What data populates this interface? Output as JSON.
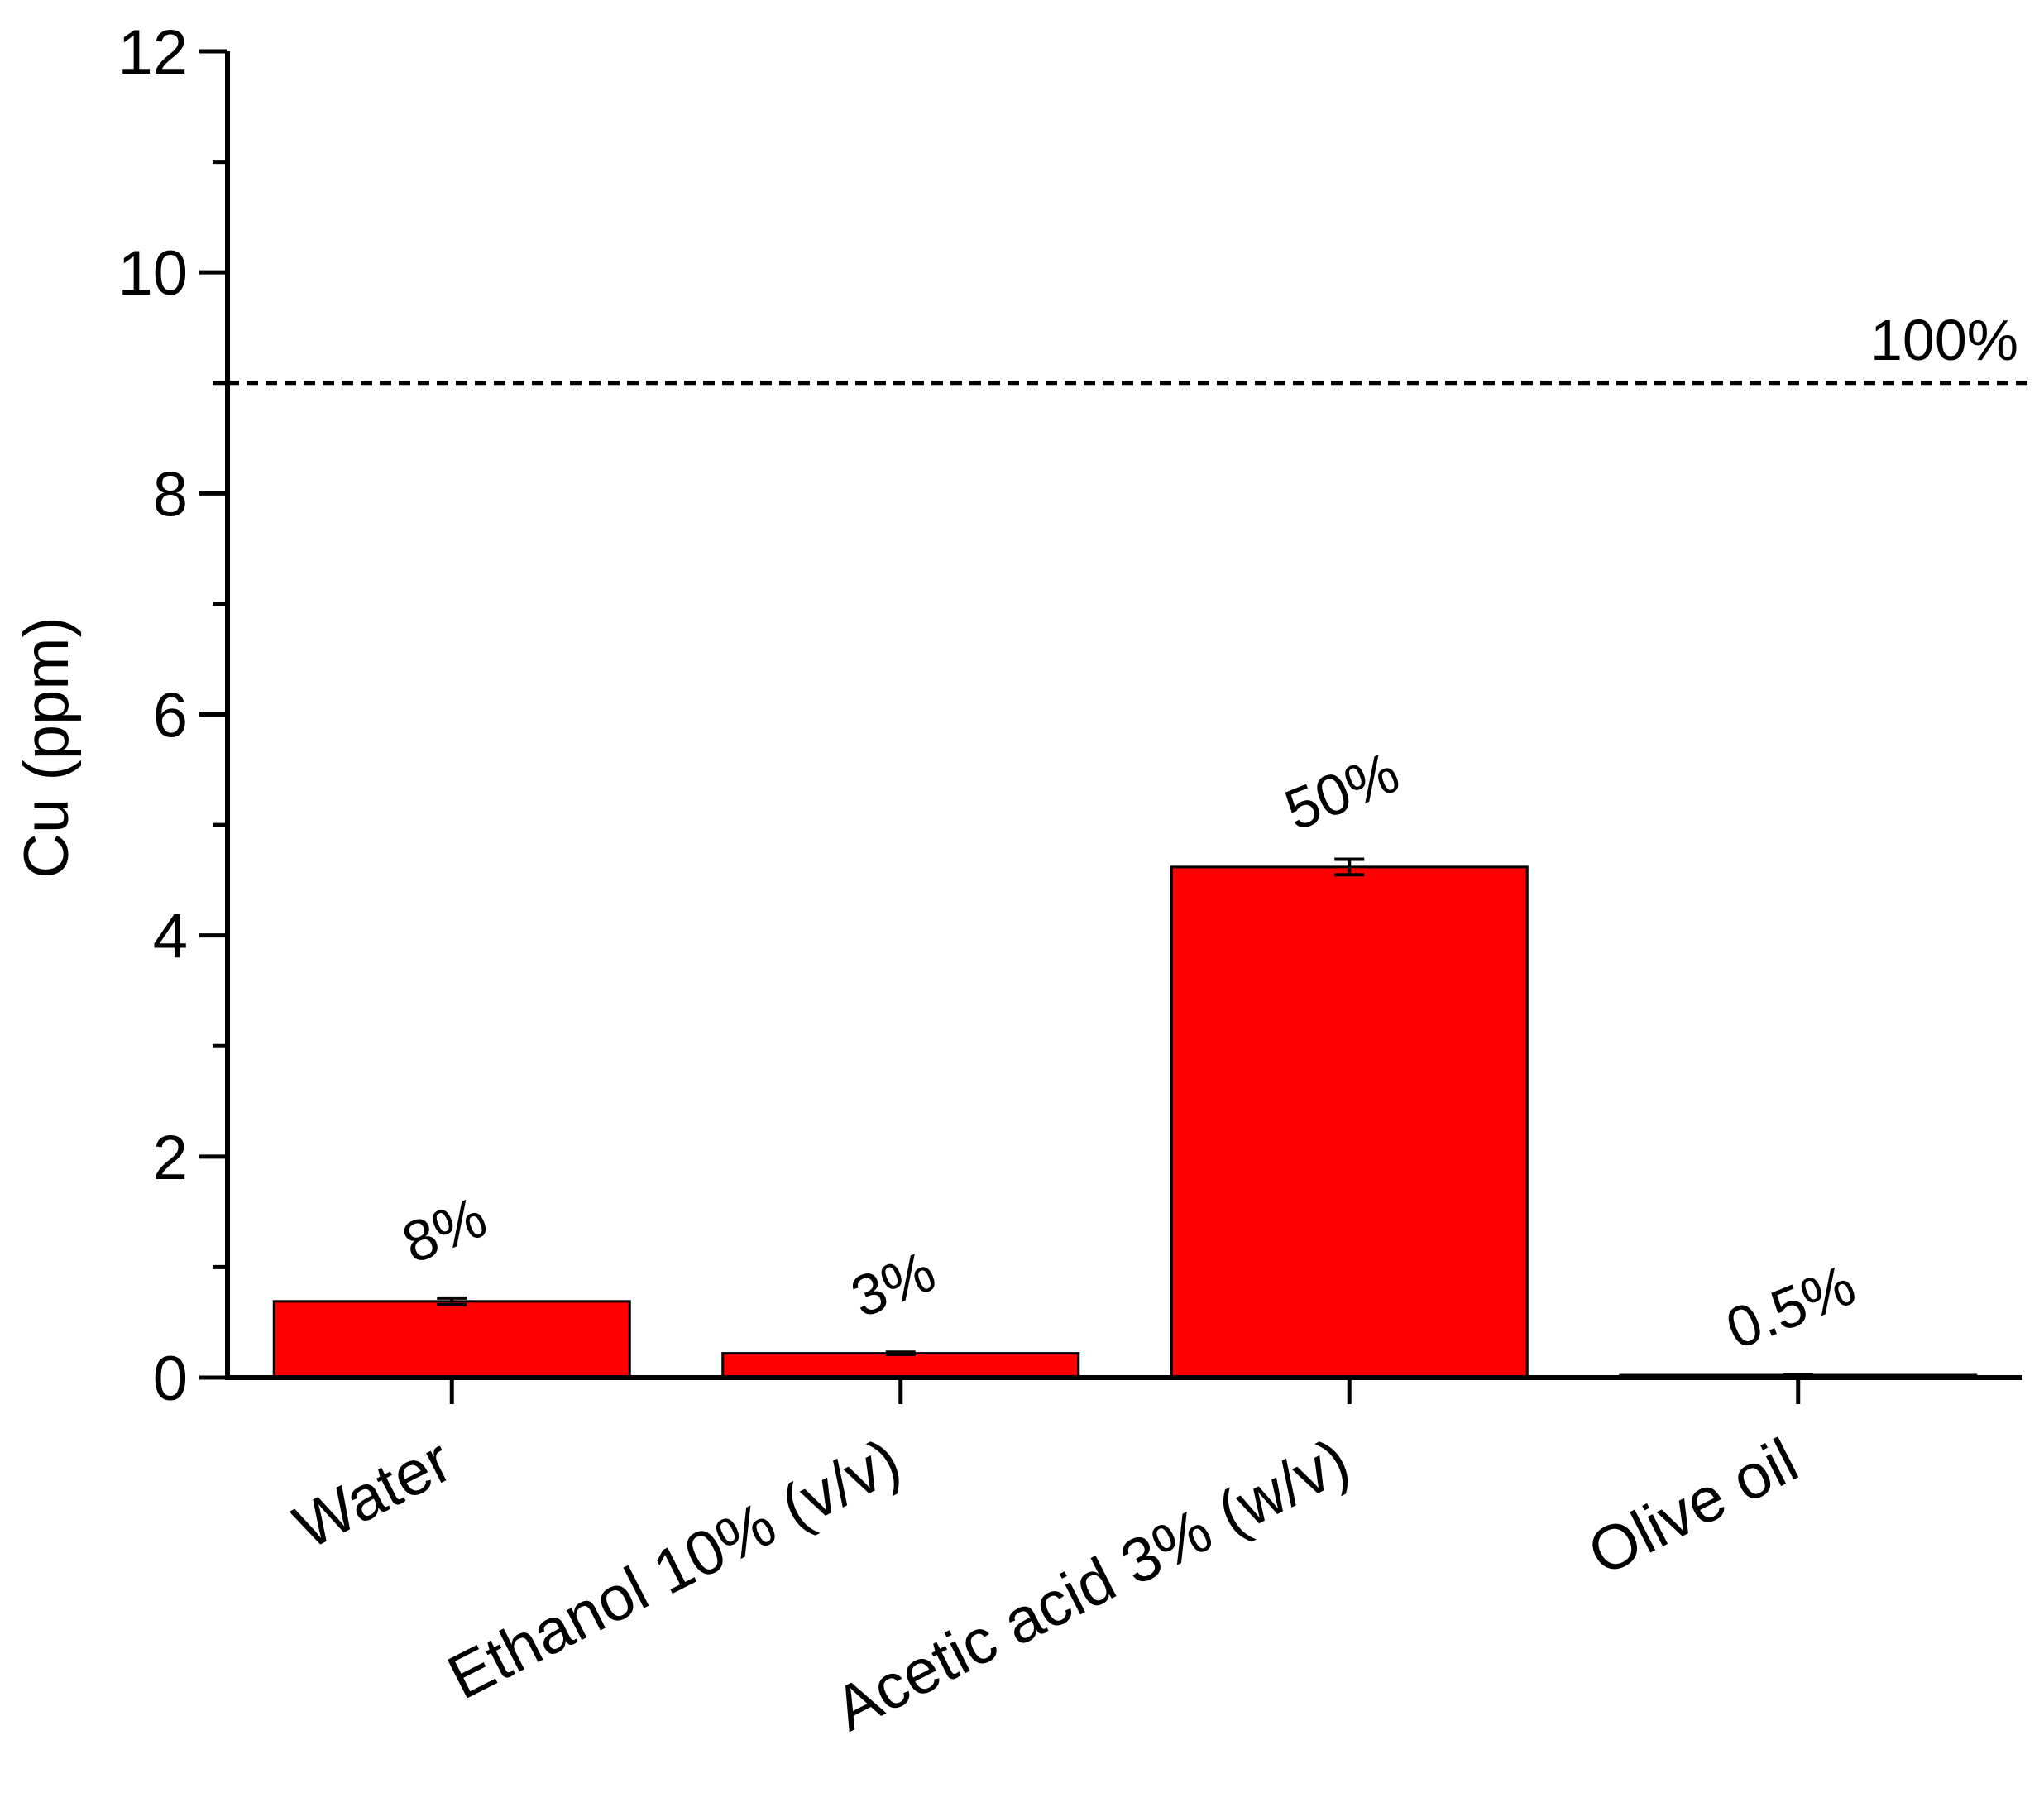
{
  "chart_data": {
    "type": "bar",
    "title": "",
    "xlabel": "",
    "ylabel": "Cu (ppm)",
    "ylim": [
      0,
      12
    ],
    "yticks": [
      "0",
      "2",
      "4",
      "6",
      "8",
      "10",
      "12"
    ],
    "categories": [
      "Water",
      "Ethanol 10% (v/v)",
      "Acetic acid 3% (w/v)",
      "Olive oil"
    ],
    "values": [
      0.69,
      0.22,
      4.62,
      0.02
    ],
    "errors": [
      0.03,
      0.01,
      0.07,
      0.005
    ],
    "bar_labels": [
      "8%",
      "3%",
      "50%",
      "0.5%"
    ],
    "bar_color": "#ff0000",
    "reference_line": {
      "value": 9.0,
      "label": "100%",
      "style": "dashed"
    },
    "grid": false,
    "legend": "none"
  }
}
